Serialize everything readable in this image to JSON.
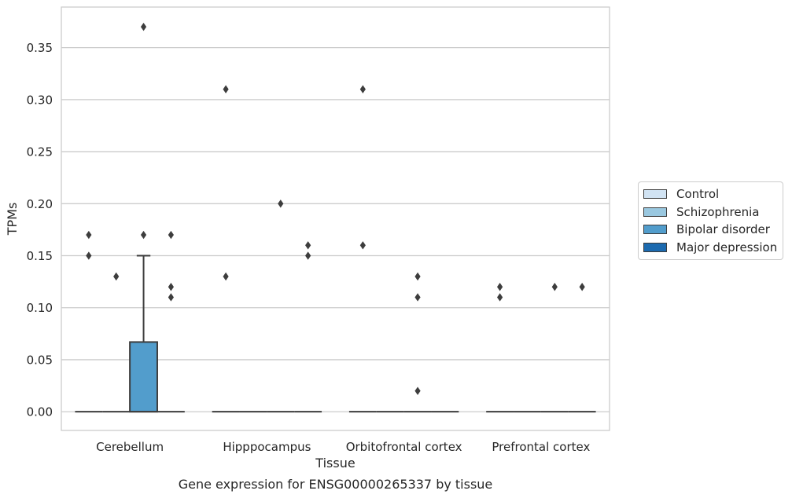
{
  "chart_data": {
    "type": "box",
    "title": "",
    "caption": "Gene expression for ENSG00000265337 by tissue",
    "xlabel": "Tissue",
    "ylabel": "TPMs",
    "ylim": [
      -0.018,
      0.389
    ],
    "yticks": [
      0.0,
      0.05,
      0.1,
      0.15,
      0.2,
      0.25,
      0.3,
      0.35
    ],
    "ytick_labels": [
      "0.00",
      "0.05",
      "0.10",
      "0.15",
      "0.20",
      "0.25",
      "0.30",
      "0.35"
    ],
    "grid": "horizontal",
    "legend_position": "right",
    "categories": [
      "Cerebellum",
      "Hipppocampus",
      "Orbitofrontal cortex",
      "Prefrontal cortex"
    ],
    "series": [
      {
        "name": "Control",
        "color": "#d1e3f3",
        "boxes": [
          {
            "q1": 0,
            "median": 0,
            "q3": 0,
            "whisker_low": 0,
            "whisker_high": 0,
            "outliers": [
              0.15,
              0.17
            ]
          },
          {
            "q1": 0,
            "median": 0,
            "q3": 0,
            "whisker_low": 0,
            "whisker_high": 0,
            "outliers": [
              0.13,
              0.31
            ]
          },
          {
            "q1": 0,
            "median": 0,
            "q3": 0,
            "whisker_low": 0,
            "whisker_high": 0,
            "outliers": [
              0.16,
              0.31
            ]
          },
          {
            "q1": 0,
            "median": 0,
            "q3": 0,
            "whisker_low": 0,
            "whisker_high": 0,
            "outliers": [
              0.11,
              0.12
            ]
          }
        ]
      },
      {
        "name": "Schizophrenia",
        "color": "#9ac8e0",
        "boxes": [
          {
            "q1": 0,
            "median": 0,
            "q3": 0,
            "whisker_low": 0,
            "whisker_high": 0,
            "outliers": [
              0.13
            ]
          },
          {
            "q1": 0,
            "median": 0,
            "q3": 0,
            "whisker_low": 0,
            "whisker_high": 0,
            "outliers": []
          },
          {
            "q1": 0,
            "median": 0,
            "q3": 0,
            "whisker_low": 0,
            "whisker_high": 0,
            "outliers": []
          },
          {
            "q1": 0,
            "median": 0,
            "q3": 0,
            "whisker_low": 0,
            "whisker_high": 0,
            "outliers": []
          }
        ]
      },
      {
        "name": "Bipolar disorder",
        "color": "#529dcc",
        "boxes": [
          {
            "q1": 0,
            "median": 0,
            "q3": 0.067,
            "whisker_low": 0,
            "whisker_high": 0.15,
            "outliers": [
              0.17,
              0.37
            ]
          },
          {
            "q1": 0,
            "median": 0,
            "q3": 0,
            "whisker_low": 0,
            "whisker_high": 0,
            "outliers": [
              0.2
            ]
          },
          {
            "q1": 0,
            "median": 0,
            "q3": 0,
            "whisker_low": 0,
            "whisker_high": 0,
            "outliers": [
              0.11,
              0.13,
              0.02
            ]
          },
          {
            "q1": 0,
            "median": 0,
            "q3": 0,
            "whisker_low": 0,
            "whisker_high": 0,
            "outliers": [
              0.12
            ]
          }
        ]
      },
      {
        "name": "Major depression",
        "color": "#1c6aaf",
        "boxes": [
          {
            "q1": 0,
            "median": 0,
            "q3": 0,
            "whisker_low": 0,
            "whisker_high": 0,
            "outliers": [
              0.11,
              0.12,
              0.17
            ]
          },
          {
            "q1": 0,
            "median": 0,
            "q3": 0,
            "whisker_low": 0,
            "whisker_high": 0,
            "outliers": [
              0.15,
              0.16
            ]
          },
          {
            "q1": 0,
            "median": 0,
            "q3": 0,
            "whisker_low": 0,
            "whisker_high": 0,
            "outliers": []
          },
          {
            "q1": 0,
            "median": 0,
            "q3": 0,
            "whisker_low": 0,
            "whisker_high": 0,
            "outliers": [
              0.12
            ]
          }
        ]
      }
    ]
  }
}
